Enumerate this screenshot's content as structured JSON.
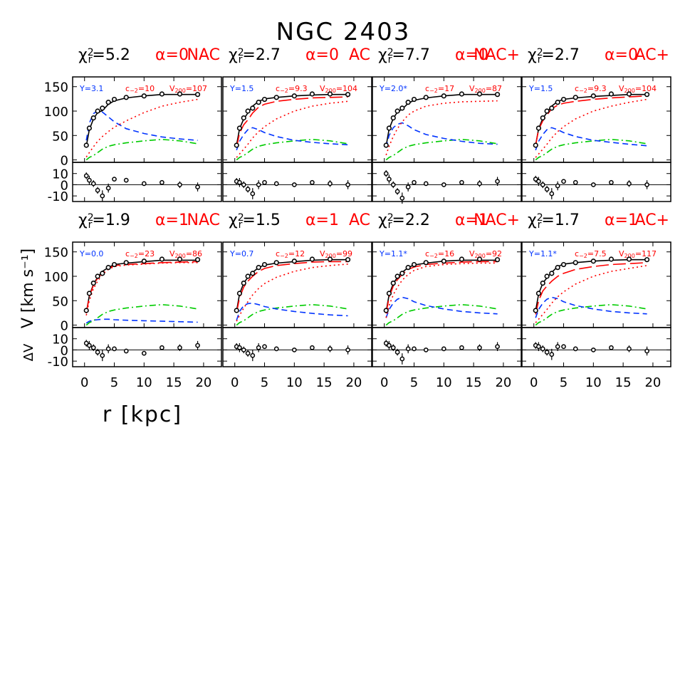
{
  "chart_data": {
    "type": "line",
    "title": "NGC 2403",
    "xlabel": "r [kpc]",
    "ylabel": "V [km s⁻¹]",
    "residual_label": "ΔV",
    "xlim": [
      -2,
      23
    ],
    "xticks": [
      0,
      5,
      10,
      15,
      20
    ],
    "ylim": [
      -5,
      170
    ],
    "yticks": [
      0,
      50,
      100,
      150
    ],
    "rlim": [
      -15,
      20
    ],
    "rticks": [
      -10,
      0,
      10
    ],
    "chi_label": {
      "symbol": "χ",
      "sup": "2",
      "sub": "r",
      "eq": "="
    },
    "alpha_label": "α=",
    "upsilon_label": "Υ=",
    "c_label": {
      "symbol": "c",
      "sub": "−2",
      "eq": "="
    },
    "v200_label": {
      "symbol": "V",
      "sub": "200",
      "eq": "="
    },
    "x": [
      0.3,
      0.8,
      1.5,
      2.2,
      3,
      4,
      5,
      7,
      10,
      13,
      16,
      19
    ],
    "observed": [
      30,
      65,
      86,
      100,
      106,
      118,
      124,
      128,
      131,
      135,
      135,
      134
    ],
    "errors": [
      3,
      4,
      3,
      3,
      5,
      4,
      2,
      2,
      2,
      2,
      3,
      4
    ],
    "gas": {
      "color": "#00cc00",
      "dash": "dashdot",
      "values": [
        0,
        5,
        9,
        15,
        22,
        28,
        31,
        35,
        39,
        42,
        39,
        33
      ]
    },
    "panels": [
      {
        "chi2": 5.2,
        "alpha": 0,
        "model": "NAC",
        "upsilon": 3.1,
        "c": 10,
        "v200": 107,
        "series": [
          {
            "color": "#000000",
            "dash": "solid",
            "values": [
              28,
              62,
              84,
              97,
              101,
              114,
              121,
              127,
              131,
              134,
              134,
              134
            ]
          },
          {
            "color": "#0033ff",
            "dash": "dashed",
            "values": [
              40,
              75,
              95,
              100,
              98,
              88,
              78,
              64,
              54,
              47,
              43,
              40
            ]
          },
          {
            "color": "#ff0000",
            "dash": "dotted",
            "values": [
              6,
              15,
              27,
              38,
              48,
              58,
              67,
              80,
              97,
              110,
              118,
              124
            ]
          }
        ],
        "residuals": [
          8,
          4,
          1,
          -5,
          -10,
          -3,
          5,
          4,
          1,
          2,
          0,
          -2
        ]
      },
      {
        "chi2": 2.7,
        "alpha": 0,
        "model": "AC",
        "upsilon": 1.5,
        "c": 9.3,
        "v200": 104,
        "series": [
          {
            "color": "#000000",
            "dash": "solid",
            "values": [
              30,
              64,
              84,
              96,
              110,
              120,
              125,
              128,
              131,
              133,
              134,
              134
            ]
          },
          {
            "color": "#0033ff",
            "dash": "dashed",
            "values": [
              20,
              38,
              52,
              62,
              66,
              62,
              56,
              48,
              40,
              36,
              33,
              31
            ]
          },
          {
            "color": "#ff0000",
            "dash": "longdash",
            "values": [
              25,
              55,
              72,
              82,
              96,
              108,
              114,
              120,
              124,
              127,
              128,
              129
            ]
          },
          {
            "color": "#ff0000",
            "dash": "dotted",
            "values": [
              5,
              12,
              22,
              32,
              45,
              58,
              68,
              84,
              100,
              110,
              116,
              120
            ]
          }
        ],
        "residuals": [
          3,
          2,
          0,
          -4,
          -8,
          0,
          2,
          1,
          0,
          2,
          1,
          0
        ]
      },
      {
        "chi2": 7.7,
        "alpha": 0,
        "model": "NAC+",
        "upsilon": {
          "value": 2.0,
          "label": "2.0*"
        },
        "c": 17,
        "v200": 87,
        "series": [
          {
            "color": "#000000",
            "dash": "solid",
            "values": [
              28,
              63,
              85,
              98,
              104,
              116,
              122,
              127,
              131,
              134,
              134,
              134
            ]
          },
          {
            "color": "#0033ff",
            "dash": "dashed",
            "values": [
              25,
              50,
              66,
              73,
              76,
              70,
              62,
              52,
              44,
              38,
              34,
              32
            ]
          },
          {
            "color": "#ff0000",
            "dash": "dotted",
            "values": [
              10,
              28,
              48,
              64,
              78,
              92,
              100,
              110,
              116,
              119,
              120,
              121
            ]
          }
        ],
        "residuals": [
          10,
          5,
          0,
          -6,
          -12,
          -2,
          2,
          1,
          0,
          2,
          1,
          3
        ]
      },
      {
        "chi2": 2.7,
        "alpha": 0,
        "model": "AC+",
        "upsilon": 1.5,
        "c": 9.3,
        "v200": 104,
        "series": [
          {
            "color": "#000000",
            "dash": "solid",
            "values": [
              30,
              64,
              85,
              97,
              110,
              120,
              124,
              127,
              130,
              132,
              134,
              134
            ]
          },
          {
            "color": "#0033ff",
            "dash": "dashed",
            "values": [
              20,
              38,
              52,
              62,
              66,
              62,
              56,
              48,
              40,
              36,
              32,
              29
            ]
          },
          {
            "color": "#ff0000",
            "dash": "longdash",
            "values": [
              30,
              62,
              80,
              92,
              105,
              112,
              116,
              120,
              124,
              127,
              129,
              131
            ]
          },
          {
            "color": "#ff0000",
            "dash": "dotted",
            "values": [
              5,
              12,
              22,
              32,
              45,
              58,
              68,
              84,
              100,
              110,
              118,
              124
            ]
          }
        ],
        "residuals": [
          5,
          3,
          0,
          -4,
          -8,
          -1,
          3,
          2,
          0,
          2,
          1,
          0
        ]
      },
      {
        "chi2": 1.9,
        "alpha": 1,
        "model": "NAC",
        "upsilon": {
          "value": 0,
          "label": "0.0"
        },
        "c": 23,
        "v200": 86,
        "series": [
          {
            "color": "#000000",
            "dash": "solid",
            "values": [
              25,
              60,
              84,
              98,
              110,
              118,
              124,
              127,
              130,
              133,
              133,
              133
            ]
          },
          {
            "color": "#0033ff",
            "dash": "dashed",
            "values": [
              4,
              8,
              10,
              11,
              12,
              12,
              11,
              10,
              9,
              8,
              7,
              6
            ]
          },
          {
            "color": "#ff0000",
            "dash": "longdash",
            "values": [
              24,
              58,
              82,
              96,
              107,
              116,
              122,
              124,
              126,
              128,
              129,
              130
            ]
          },
          {
            "color": "#ff0000",
            "dash": "dotted",
            "values": [
              20,
              50,
              75,
              90,
              104,
              114,
              120,
              123,
              125,
              127,
              128,
              128
            ]
          }
        ],
        "residuals": [
          6,
          4,
          2,
          -2,
          -5,
          1,
          1,
          -1,
          -3,
          2,
          2,
          4
        ]
      },
      {
        "chi2": 1.5,
        "alpha": 1,
        "model": "AC",
        "upsilon": 0.7,
        "c": 12,
        "v200": 99,
        "series": [
          {
            "color": "#000000",
            "dash": "solid",
            "values": [
              28,
              64,
              86,
              98,
              108,
              118,
              123,
              127,
              130,
              133,
              134,
              134
            ]
          },
          {
            "color": "#0033ff",
            "dash": "dashed",
            "values": [
              10,
              28,
              40,
              44,
              45,
              42,
              38,
              33,
              28,
              24,
              21,
              19
            ]
          },
          {
            "color": "#ff0000",
            "dash": "longdash",
            "values": [
              25,
              56,
              78,
              90,
              100,
              110,
              116,
              122,
              126,
              129,
              130,
              130
            ]
          },
          {
            "color": "#ff0000",
            "dash": "dotted",
            "values": [
              8,
              20,
              35,
              48,
              62,
              75,
              85,
              98,
              110,
              118,
              122,
              125
            ]
          }
        ],
        "residuals": [
          3,
          2,
          0,
          -3,
          -5,
          2,
          3,
          1,
          0,
          2,
          1,
          0
        ]
      },
      {
        "chi2": 2.2,
        "alpha": 1,
        "model": "NAC+",
        "upsilon": {
          "value": 1.1,
          "label": "1.1*"
        },
        "c": 16,
        "v200": 92,
        "series": [
          {
            "color": "#000000",
            "dash": "solid",
            "values": [
              27,
              62,
              85,
              98,
              108,
              118,
              123,
              127,
              131,
              133,
              133,
              133
            ]
          },
          {
            "color": "#0033ff",
            "dash": "dashed",
            "values": [
              15,
              32,
              45,
              53,
              57,
              54,
              48,
              40,
              33,
              28,
              25,
              23
            ]
          },
          {
            "color": "#ff0000",
            "dash": "longdash",
            "values": [
              24,
              57,
              80,
              93,
              104,
              114,
              119,
              124,
              127,
              129,
              130,
              130
            ]
          },
          {
            "color": "#ff0000",
            "dash": "dotted",
            "values": [
              15,
              40,
              62,
              78,
              92,
              104,
              112,
              120,
              124,
              126,
              127,
              127
            ]
          }
        ],
        "residuals": [
          6,
          4,
          2,
          -2,
          -8,
          1,
          1,
          0,
          1,
          2,
          2,
          3
        ]
      },
      {
        "chi2": 1.7,
        "alpha": 1,
        "model": "AC+",
        "upsilon": {
          "value": 1.1,
          "label": "1.1*"
        },
        "c": 7.5,
        "v200": 117,
        "series": [
          {
            "color": "#000000",
            "dash": "solid",
            "values": [
              29,
              64,
              86,
              97,
              108,
              120,
              125,
              128,
              131,
              133,
              134,
              134
            ]
          },
          {
            "color": "#0033ff",
            "dash": "dashed",
            "values": [
              15,
              32,
              45,
              53,
              57,
              54,
              48,
              40,
              33,
              28,
              25,
              23
            ]
          },
          {
            "color": "#ff0000",
            "dash": "longdash",
            "values": [
              22,
              50,
              70,
              80,
              90,
              100,
              106,
              114,
              120,
              124,
              126,
              128
            ]
          },
          {
            "color": "#ff0000",
            "dash": "dotted",
            "values": [
              5,
              12,
              22,
              32,
              45,
              58,
              68,
              84,
              100,
              110,
              116,
              122
            ]
          }
        ],
        "residuals": [
          4,
          3,
          1,
          -2,
          -4,
          3,
          3,
          1,
          0,
          2,
          1,
          -1
        ]
      }
    ]
  }
}
